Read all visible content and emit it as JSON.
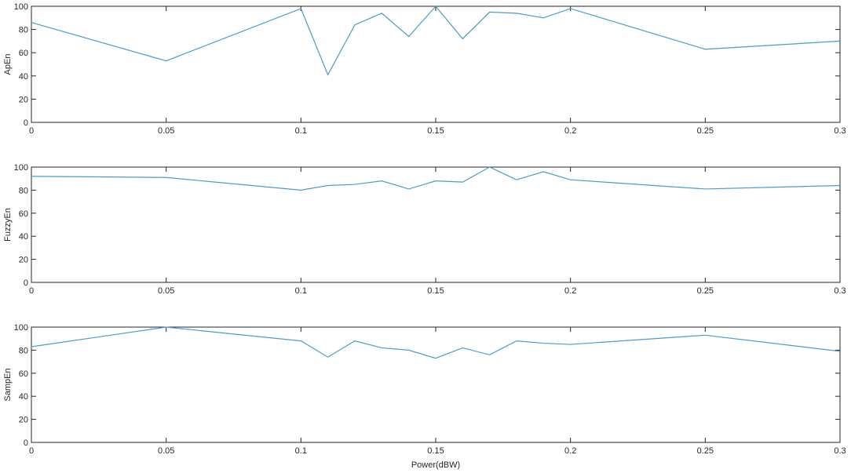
{
  "figure": {
    "background": "#ffffff",
    "axis_color": "#262626",
    "line_color": "#4a9bd0"
  },
  "chart_data": [
    {
      "type": "line",
      "title": "",
      "xlabel": "",
      "ylabel": "ApEn",
      "xlim": [
        0,
        0.3
      ],
      "ylim": [
        0,
        100
      ],
      "grid": false,
      "x_ticks": [
        "0",
        "0.05",
        "0.1",
        "0.15",
        "0.2",
        "0.25",
        "0.3"
      ],
      "y_ticks": [
        "0",
        "20",
        "40",
        "60",
        "80",
        "100"
      ],
      "series": [
        {
          "x": [
            0,
            0.05,
            0.1,
            0.11,
            0.12,
            0.13,
            0.14,
            0.15,
            0.16,
            0.17,
            0.18,
            0.19,
            0.2,
            0.25,
            0.3
          ],
          "y": [
            86,
            53,
            98,
            41,
            84,
            94,
            74,
            100,
            72,
            95,
            94,
            90,
            98,
            63,
            70
          ]
        }
      ]
    },
    {
      "type": "line",
      "title": "",
      "xlabel": "",
      "ylabel": "FuzzyEn",
      "xlim": [
        0,
        0.3
      ],
      "ylim": [
        0,
        100
      ],
      "grid": false,
      "x_ticks": [
        "0",
        "0.05",
        "0.1",
        "0.15",
        "0.2",
        "0.25",
        "0.3"
      ],
      "y_ticks": [
        "0",
        "20",
        "40",
        "60",
        "80",
        "100"
      ],
      "series": [
        {
          "x": [
            0,
            0.05,
            0.1,
            0.11,
            0.12,
            0.13,
            0.14,
            0.15,
            0.16,
            0.17,
            0.18,
            0.19,
            0.2,
            0.25,
            0.3
          ],
          "y": [
            92,
            91,
            80,
            84,
            85,
            88,
            81,
            88,
            87,
            100,
            89,
            96,
            89,
            81,
            84
          ]
        }
      ]
    },
    {
      "type": "line",
      "title": "",
      "xlabel": "Power(dBW)",
      "ylabel": "SampEn",
      "xlim": [
        0,
        0.3
      ],
      "ylim": [
        0,
        100
      ],
      "grid": false,
      "x_ticks": [
        "0",
        "0.05",
        "0.1",
        "0.15",
        "0.2",
        "0.25",
        "0.3"
      ],
      "y_ticks": [
        "0",
        "20",
        "40",
        "60",
        "80",
        "100"
      ],
      "series": [
        {
          "x": [
            0,
            0.05,
            0.1,
            0.11,
            0.12,
            0.13,
            0.14,
            0.15,
            0.16,
            0.17,
            0.18,
            0.19,
            0.2,
            0.25,
            0.3
          ],
          "y": [
            83,
            100,
            88,
            74,
            88,
            82,
            80,
            73,
            82,
            76,
            88,
            86,
            85,
            93,
            79
          ]
        }
      ]
    }
  ]
}
